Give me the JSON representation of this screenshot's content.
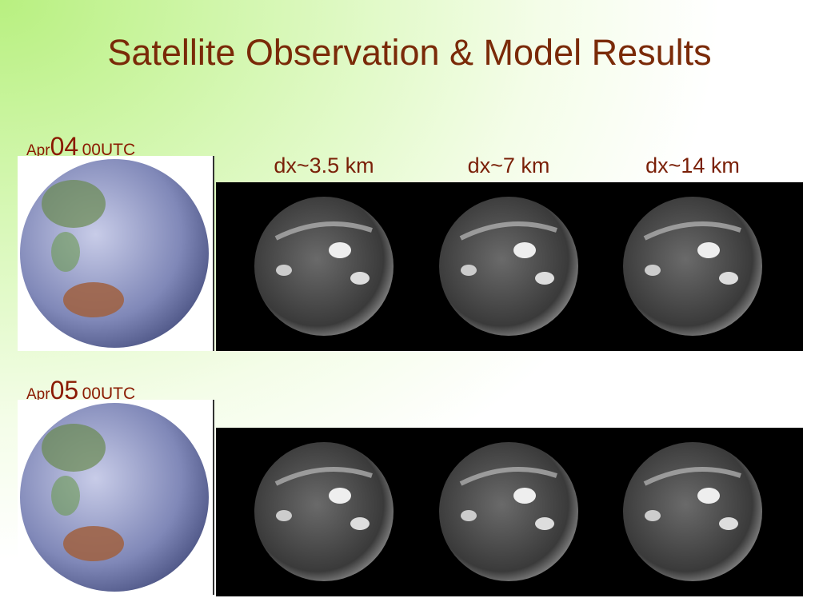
{
  "title": "Satellite Observation & Model Results",
  "columns": [
    "dx~3.5 km",
    "dx~7 km",
    "dx~14 km"
  ],
  "rows": [
    {
      "month": "Apr",
      "day": "04",
      "time": "00UTC"
    },
    {
      "month": "Apr",
      "day": "05",
      "time": "00UTC"
    }
  ]
}
